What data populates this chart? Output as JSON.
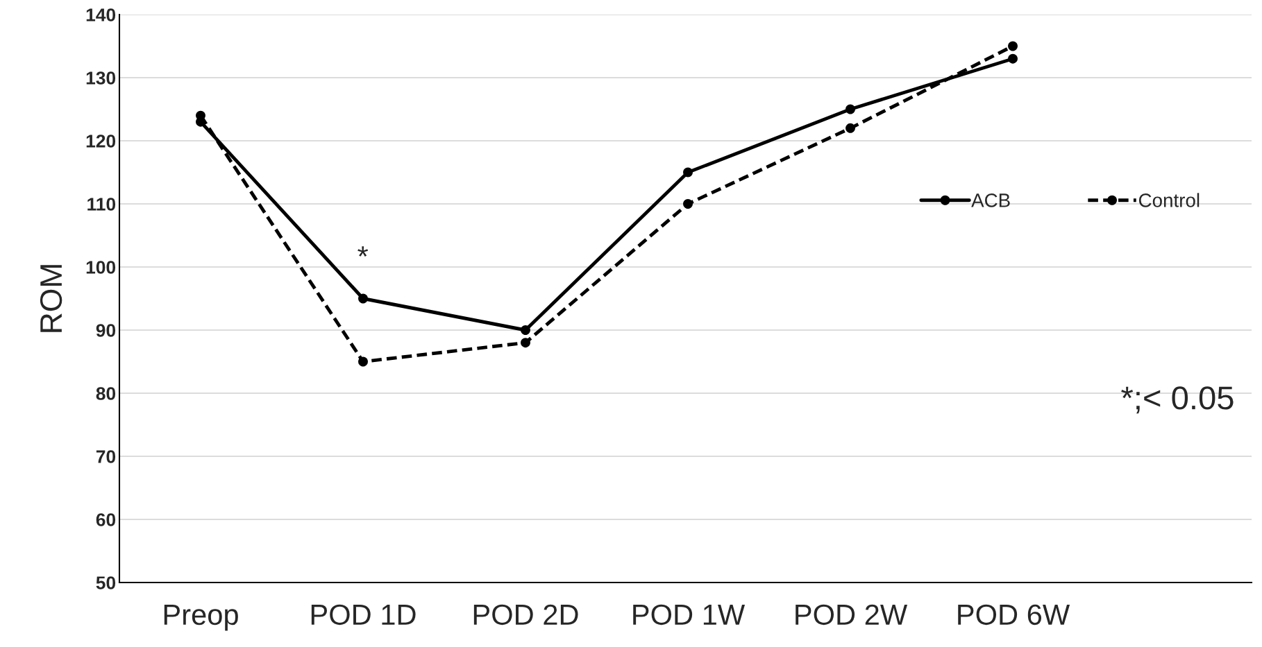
{
  "chart_data": {
    "type": "line",
    "ylabel": "ROM",
    "categories": [
      "Preop",
      "POD 1D",
      "POD 2D",
      "POD 1W",
      "POD 2W",
      "POD 6W"
    ],
    "series": [
      {
        "name": "ACB",
        "color": "#000000",
        "line_style": "solid",
        "values": [
          123,
          95,
          90,
          115,
          125,
          133
        ]
      },
      {
        "name": "Control",
        "color": "#000000",
        "line_style": "dashed",
        "values": [
          124,
          85,
          88,
          110,
          122,
          135
        ]
      }
    ],
    "ylim": [
      50,
      140
    ],
    "yticks": [
      50,
      60,
      70,
      80,
      90,
      100,
      110,
      120,
      130,
      140
    ],
    "grid": "y",
    "legend": "right",
    "marker": "circle",
    "annotations": [
      "*",
      "*;< 0.05"
    ]
  }
}
